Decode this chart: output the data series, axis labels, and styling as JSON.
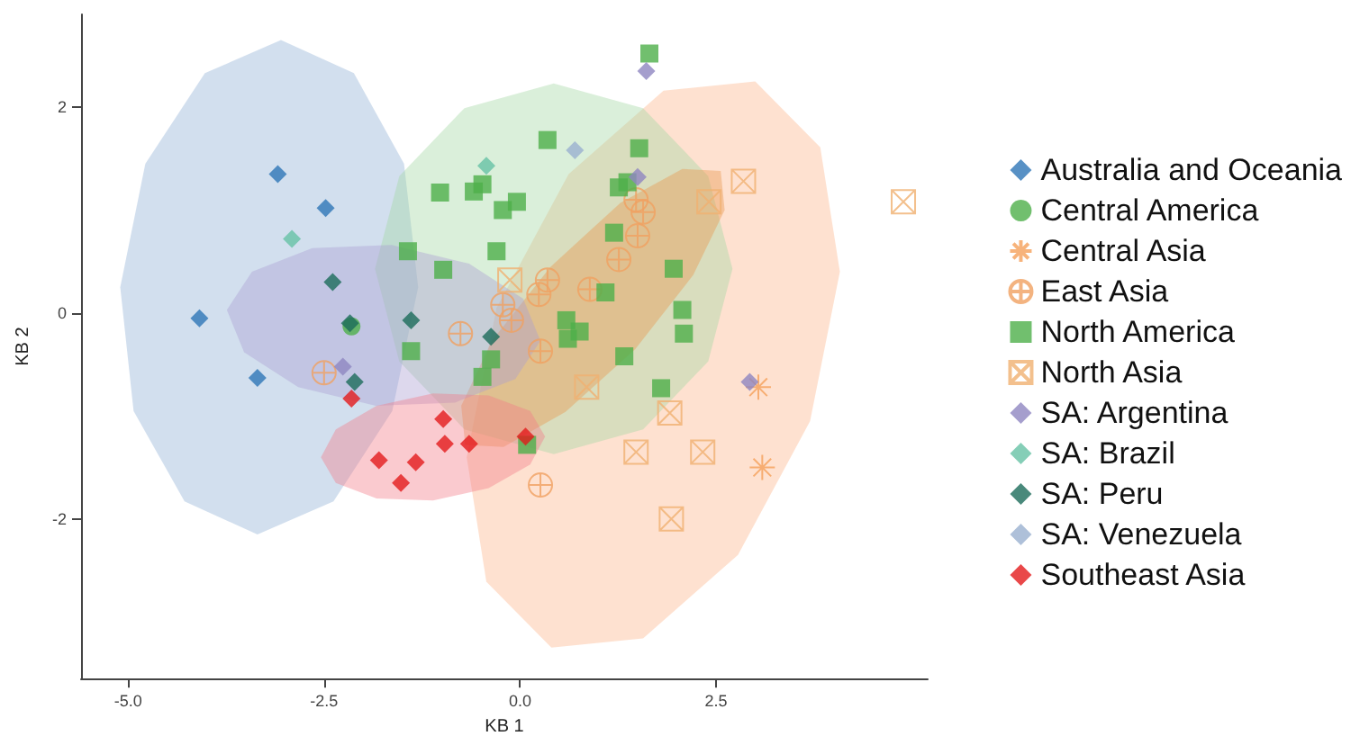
{
  "chart_data": {
    "type": "scatter",
    "xlabel": "KB 1",
    "ylabel": "KB 2",
    "xlim": [
      -5.6,
      5.2
    ],
    "ylim": [
      -3.55,
      2.9
    ],
    "xticks": [
      {
        "value": -5,
        "label": "-5.0"
      },
      {
        "value": -2.5,
        "label": "-2.5"
      },
      {
        "value": 0,
        "label": "0.0"
      },
      {
        "value": 2.5,
        "label": "2.5"
      }
    ],
    "yticks": [
      -2,
      0,
      2
    ],
    "grid": false,
    "legend": "right",
    "series": [
      {
        "type": "area",
        "color": "#8fb0d4",
        "x": [
          -3.05,
          -2.12,
          -1.48,
          -1.3,
          -1.63,
          -2.38,
          -3.35,
          -4.28,
          -4.93,
          -5.1,
          -4.78,
          -4.02
        ],
        "values": [
          2.65,
          2.33,
          1.45,
          0.25,
          -0.95,
          -1.83,
          -2.15,
          -1.83,
          -0.95,
          0.25,
          1.45,
          2.33
        ]
      },
      {
        "type": "area",
        "color": "#fdb58a",
        "x": [
          3.0,
          3.83,
          4.08,
          3.7,
          2.78,
          1.57,
          0.4,
          -0.43,
          -0.68,
          -0.3,
          0.62,
          1.83
        ],
        "values": [
          2.25,
          1.61,
          0.4,
          -1.05,
          -2.35,
          -3.16,
          -3.25,
          -2.61,
          -1.4,
          0.05,
          1.35,
          2.16
        ]
      },
      {
        "type": "area",
        "color": "#a3d8a3",
        "x": [
          0.43,
          1.57,
          2.4,
          2.71,
          2.4,
          1.57,
          0.43,
          -0.71,
          -1.54,
          -1.85,
          -1.54,
          -0.71
        ],
        "values": [
          2.23,
          1.99,
          1.33,
          0.43,
          -0.47,
          -1.13,
          -1.37,
          -1.13,
          -0.47,
          0.43,
          1.33,
          1.99
        ]
      },
      {
        "type": "area",
        "color": "#e8964a",
        "x": [
          2.56,
          2.61,
          2.21,
          1.47,
          0.58,
          -0.21,
          -0.7,
          -0.75,
          -0.36,
          0.39,
          1.28,
          2.07
        ],
        "values": [
          1.38,
          1.0,
          0.37,
          -0.35,
          -0.96,
          -1.3,
          -1.28,
          -0.9,
          -0.27,
          0.45,
          1.07,
          1.4
        ]
      },
      {
        "type": "area",
        "color": "#ab9dd2",
        "x": [
          0.26,
          0.04,
          -0.65,
          -1.64,
          -2.65,
          -3.42,
          -3.74,
          -3.52,
          -2.83,
          -1.84,
          -0.83,
          -0.06
        ],
        "values": [
          -0.27,
          0.14,
          0.48,
          0.66,
          0.63,
          0.4,
          0.03,
          -0.38,
          -0.72,
          -0.9,
          -0.87,
          -0.64
        ]
      },
      {
        "type": "area",
        "color": "#f27b88",
        "x": [
          0.32,
          0.13,
          -0.4,
          -1.11,
          -1.83,
          -2.35,
          -2.54,
          -2.35,
          -1.83,
          -1.11,
          -0.4,
          0.13
        ],
        "values": [
          -1.2,
          -0.95,
          -0.8,
          -0.78,
          -0.9,
          -1.13,
          -1.4,
          -1.65,
          -1.8,
          -1.82,
          -1.7,
          -1.47
        ]
      },
      {
        "name": "Australia and Oceania",
        "color": "#2e75b6",
        "marker": "diamond",
        "x": [
          -3.09,
          -2.48,
          -4.09,
          -3.35
        ],
        "values": [
          1.35,
          1.02,
          -0.05,
          -0.63
        ]
      },
      {
        "name": "Central America",
        "color": "#4daf4a",
        "marker": "circle",
        "x": [
          -2.15
        ],
        "values": [
          -0.13
        ]
      },
      {
        "name": "Central Asia",
        "color": "#f5a05a",
        "marker": "asterisk",
        "x": [
          3.04,
          3.09
        ],
        "values": [
          -0.72,
          -1.5
        ]
      },
      {
        "name": "East Asia",
        "color": "#f0a060",
        "marker": "cross",
        "x": [
          1.48,
          1.57,
          1.5,
          1.26,
          0.35,
          0.24,
          0.89,
          -0.22,
          -0.11,
          -0.76,
          0.26,
          -2.5,
          0.26
        ],
        "values": [
          1.1,
          0.98,
          0.75,
          0.52,
          0.32,
          0.18,
          0.23,
          0.08,
          -0.07,
          -0.2,
          -0.37,
          -0.58,
          -1.67
        ]
      },
      {
        "name": "North America",
        "color": "#4daf4a",
        "marker": "square",
        "x": [
          1.65,
          0.35,
          1.52,
          -1.02,
          -0.59,
          -0.48,
          -0.22,
          -0.04,
          -0.3,
          1.2,
          1.26,
          1.37,
          -1.43,
          -0.98,
          1.96,
          2.07,
          2.09,
          1.33,
          0.59,
          0.76,
          0.61,
          1.09,
          -1.39,
          -0.37,
          -0.48,
          1.8,
          0.09
        ],
        "values": [
          2.52,
          1.68,
          1.6,
          1.17,
          1.18,
          1.25,
          1.0,
          1.08,
          0.6,
          0.78,
          1.22,
          1.27,
          0.6,
          0.42,
          0.43,
          0.03,
          -0.2,
          -0.42,
          -0.07,
          -0.18,
          -0.25,
          0.2,
          -0.37,
          -0.45,
          -0.62,
          -0.73,
          -1.28
        ]
      },
      {
        "name": "North Asia",
        "color": "#f0b070",
        "marker": "cross",
        "x": [
          2.85,
          2.41,
          -0.13,
          0.85,
          1.91,
          1.48,
          2.33,
          1.93,
          4.89
        ],
        "values": [
          1.28,
          1.08,
          0.32,
          -0.72,
          -0.97,
          -1.35,
          -1.35,
          -2.0,
          1.08
        ]
      },
      {
        "name": "SA: Argentina",
        "color": "#8f86c0",
        "marker": "diamond",
        "x": [
          1.61,
          1.5,
          2.93,
          -2.26
        ],
        "values": [
          2.35,
          1.32,
          -0.67,
          -0.52
        ]
      },
      {
        "name": "SA: Brazil",
        "color": "#66c2a5",
        "marker": "diamond",
        "x": [
          -0.43,
          -2.91
        ],
        "values": [
          1.43,
          0.72
        ]
      },
      {
        "name": "SA: Peru",
        "color": "#1b6b5a",
        "marker": "diamond",
        "x": [
          -2.39,
          -2.17,
          -1.39,
          -2.11,
          -0.37
        ],
        "values": [
          0.3,
          -0.1,
          -0.07,
          -0.67,
          -0.23
        ]
      },
      {
        "name": "SA: Venezuela",
        "color": "#9ab0d0",
        "marker": "diamond",
        "x": [
          0.7
        ],
        "values": [
          1.58
        ]
      },
      {
        "name": "Southeast Asia",
        "color": "#e41a1c",
        "marker": "diamond",
        "x": [
          -2.15,
          -0.98,
          -0.96,
          -0.65,
          -1.8,
          -1.33,
          -1.52,
          0.07
        ],
        "values": [
          -0.83,
          -1.03,
          -1.27,
          -1.27,
          -1.43,
          -1.45,
          -1.65,
          -1.2
        ]
      }
    ]
  }
}
